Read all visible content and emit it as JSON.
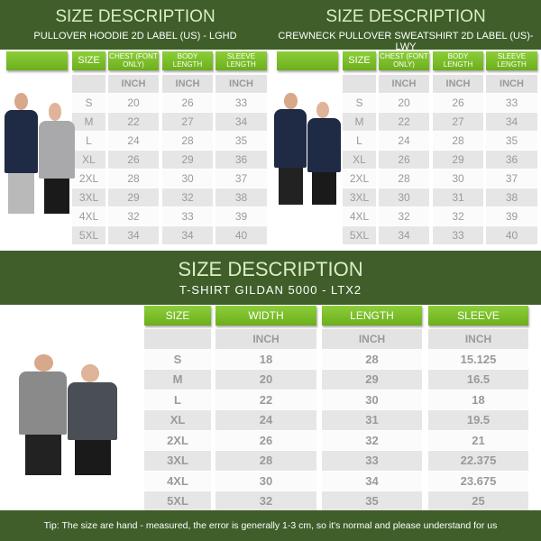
{
  "panels": [
    {
      "title": "SIZE DESCRIPTION",
      "subtitle": "PULLOVER HOODIE 2D LABEL (US) - LGHD",
      "headers": [
        "SIZE",
        "CHEST (FONT ONLY)",
        "BODY LENGTH",
        "SLEEVE LENGTH"
      ],
      "unit": "INCH",
      "rows": [
        [
          "S",
          "20",
          "26",
          "33"
        ],
        [
          "M",
          "22",
          "27",
          "34"
        ],
        [
          "L",
          "24",
          "28",
          "35"
        ],
        [
          "XL",
          "26",
          "29",
          "36"
        ],
        [
          "2XL",
          "28",
          "30",
          "37"
        ],
        [
          "3XL",
          "29",
          "32",
          "38"
        ],
        [
          "4XL",
          "32",
          "33",
          "39"
        ],
        [
          "5XL",
          "34",
          "34",
          "40"
        ]
      ]
    },
    {
      "title": "SIZE DESCRIPTION",
      "subtitle": "CREWNECK PULLOVER SWEATSHIRT 2D LABEL (US)- LWY",
      "headers": [
        "SIZE",
        "CHEST (FONT ONLY)",
        "BODY LENGTH",
        "SLEEVE LENGTH"
      ],
      "unit": "INCH",
      "rows": [
        [
          "S",
          "20",
          "26",
          "33"
        ],
        [
          "M",
          "22",
          "27",
          "34"
        ],
        [
          "L",
          "24",
          "28",
          "35"
        ],
        [
          "XL",
          "26",
          "29",
          "36"
        ],
        [
          "2XL",
          "28",
          "30",
          "37"
        ],
        [
          "3XL",
          "30",
          "31",
          "38"
        ],
        [
          "4XL",
          "32",
          "32",
          "39"
        ],
        [
          "5XL",
          "34",
          "33",
          "40"
        ]
      ]
    },
    {
      "title": "SIZE DESCRIPTION",
      "subtitle": "T-SHIRT GILDAN 5000 - LTX2",
      "headers": [
        "SIZE",
        "WIDTH",
        "LENGTH",
        "SLEEVE"
      ],
      "unit": "INCH",
      "rows": [
        [
          "S",
          "18",
          "28",
          "15.125"
        ],
        [
          "M",
          "20",
          "29",
          "16.5"
        ],
        [
          "L",
          "22",
          "30",
          "18"
        ],
        [
          "XL",
          "24",
          "31",
          "19.5"
        ],
        [
          "2XL",
          "26",
          "32",
          "21"
        ],
        [
          "3XL",
          "28",
          "33",
          "22.375"
        ],
        [
          "4XL",
          "30",
          "34",
          "23.675"
        ],
        [
          "5XL",
          "32",
          "35",
          "25"
        ]
      ]
    }
  ],
  "footer": {
    "tip": "Tip: The size are hand - measured, the error is generally 1-3 cm, so it's normal and please understand for us"
  },
  "colors": {
    "dark_green": "#3f5e29",
    "bright_green": "#78be20",
    "row_gray": "#e6e6e6",
    "text_gray": "#9a9a9a"
  }
}
